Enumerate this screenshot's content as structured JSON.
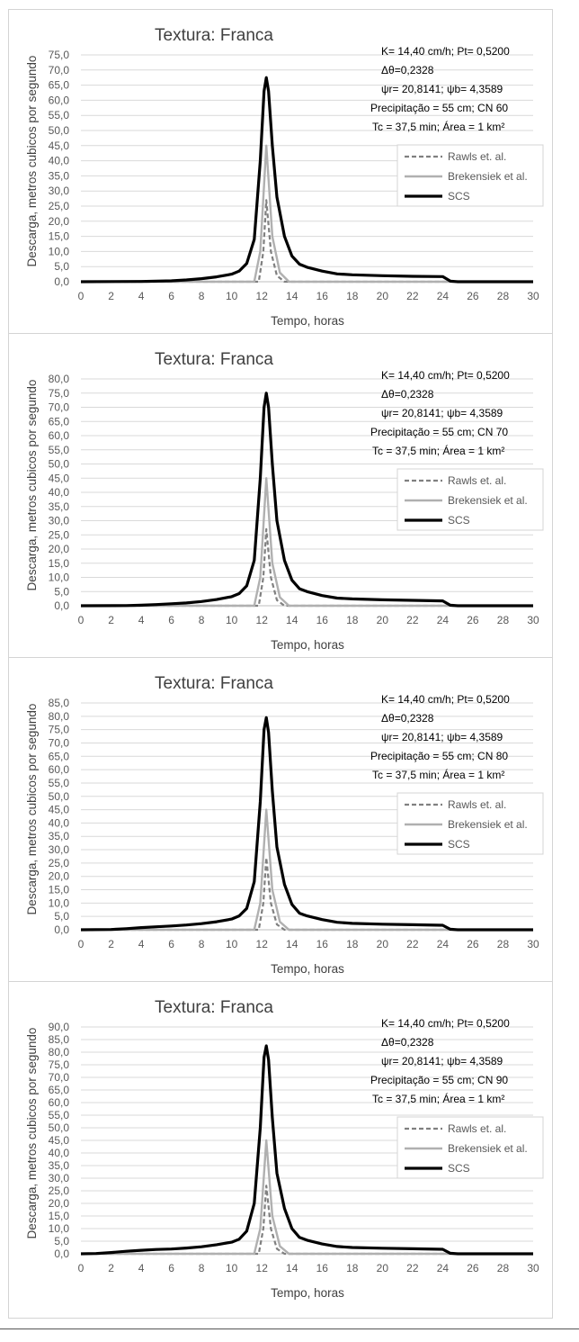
{
  "chart_data": [
    {
      "type": "line",
      "title": "Textura: Franca",
      "xlabel": "Tempo, horas",
      "ylabel": "Descarga, metros cubicos por segundo",
      "xlim": [
        0,
        30
      ],
      "ylim": [
        0,
        75
      ],
      "x_ticks": [
        "0",
        "2",
        "4",
        "6",
        "8",
        "10",
        "12",
        "14",
        "16",
        "18",
        "20",
        "22",
        "24",
        "26",
        "28",
        "30"
      ],
      "y_ticks": [
        "0,0",
        "5,0",
        "10,0",
        "15,0",
        "20,0",
        "25,0",
        "30,0",
        "35,0",
        "40,0",
        "45,0",
        "50,0",
        "55,0",
        "60,0",
        "65,0",
        "70,0",
        "75,0"
      ],
      "y_step": 5,
      "annotations": [
        "K= 14,40 cm/h; Pt= 0,5200",
        "Δθ=0,2328",
        "ψr= 20,8141;  ψb= 4,3589",
        "Precipitação = 55 cm; CN 60",
        "Tc = 37,5 min; Área = 1 km²"
      ],
      "legend": [
        "Rawls et. al.",
        "Brekensiek et al.",
        "SCS"
      ],
      "series": [
        {
          "name": "Rawls et. al.",
          "x": [
            0,
            11.8,
            12.1,
            12.3,
            12.6,
            13.0,
            13.5,
            30
          ],
          "values": [
            0,
            0,
            10,
            27,
            10,
            2,
            0,
            0
          ]
        },
        {
          "name": "Brekensiek et al.",
          "x": [
            0,
            11.5,
            11.9,
            12.3,
            12.7,
            13.2,
            13.8,
            30
          ],
          "values": [
            0,
            0,
            10,
            45,
            15,
            3,
            0,
            0
          ]
        },
        {
          "name": "SCS",
          "x": [
            0,
            4,
            6,
            7,
            8,
            9,
            10,
            10.5,
            11,
            11.5,
            11.9,
            12.15,
            12.3,
            12.45,
            12.7,
            13,
            13.5,
            14,
            14.5,
            15,
            16,
            17,
            18,
            20,
            22,
            24,
            24.5,
            25,
            30
          ],
          "values": [
            0,
            0.1,
            0.3,
            0.6,
            1.0,
            1.6,
            2.5,
            3.5,
            6.0,
            14,
            40,
            63,
            67.5,
            63,
            45,
            28,
            15,
            8.5,
            5.8,
            4.8,
            3.5,
            2.6,
            2.3,
            2.0,
            1.8,
            1.7,
            0.2,
            0,
            0
          ]
        }
      ]
    },
    {
      "type": "line",
      "title": "Textura: Franca",
      "xlabel": "Tempo, horas",
      "ylabel": "Descarga, metros cubicos por segundo",
      "xlim": [
        0,
        30
      ],
      "ylim": [
        0,
        80
      ],
      "x_ticks": [
        "0",
        "2",
        "4",
        "6",
        "8",
        "10",
        "12",
        "14",
        "16",
        "18",
        "20",
        "22",
        "24",
        "26",
        "28",
        "30"
      ],
      "y_ticks": [
        "0,0",
        "5,0",
        "10,0",
        "15,0",
        "20,0",
        "25,0",
        "30,0",
        "35,0",
        "40,0",
        "45,0",
        "50,0",
        "55,0",
        "60,0",
        "65,0",
        "70,0",
        "75,0",
        "80,0"
      ],
      "y_step": 5,
      "annotations": [
        "K= 14,40 cm/h; Pt= 0,5200",
        "Δθ=0,2328",
        "ψr= 20,8141;  ψb= 4,3589",
        "Precipitação = 55 cm; CN 70",
        "Tc = 37,5 min; Área = 1 km²"
      ],
      "legend": [
        "Rawls et. al.",
        "Brekensiek et al.",
        "SCS"
      ],
      "series": [
        {
          "name": "Rawls et. al.",
          "x": [
            0,
            11.8,
            12.1,
            12.3,
            12.6,
            13.0,
            13.5,
            30
          ],
          "values": [
            0,
            0,
            10,
            27,
            10,
            2,
            0,
            0
          ]
        },
        {
          "name": "Brekensiek et al.",
          "x": [
            0,
            11.5,
            11.9,
            12.3,
            12.7,
            13.2,
            13.8,
            30
          ],
          "values": [
            0,
            0,
            10,
            45,
            15,
            3,
            0,
            0
          ]
        },
        {
          "name": "SCS",
          "x": [
            0,
            3,
            4,
            5,
            6,
            7,
            8,
            9,
            10,
            10.5,
            11,
            11.5,
            11.9,
            12.15,
            12.3,
            12.45,
            12.7,
            13,
            13.5,
            14,
            14.5,
            15,
            16,
            17,
            18,
            20,
            22,
            24,
            24.5,
            25,
            30
          ],
          "values": [
            0,
            0.05,
            0.2,
            0.4,
            0.7,
            1.0,
            1.5,
            2.2,
            3.2,
            4.3,
            7.0,
            16,
            45,
            70,
            75,
            70,
            50,
            30,
            16,
            9,
            6,
            5,
            3.6,
            2.7,
            2.4,
            2.1,
            1.9,
            1.7,
            0.2,
            0,
            0
          ]
        }
      ]
    },
    {
      "type": "line",
      "title": "Textura: Franca",
      "xlabel": "Tempo, horas",
      "ylabel": "Descarga, metros cubicos por segundo",
      "xlim": [
        0,
        30
      ],
      "ylim": [
        0,
        85
      ],
      "x_ticks": [
        "0",
        "2",
        "4",
        "6",
        "8",
        "10",
        "12",
        "14",
        "16",
        "18",
        "20",
        "22",
        "24",
        "26",
        "28",
        "30"
      ],
      "y_ticks": [
        "0,0",
        "5,0",
        "10,0",
        "15,0",
        "20,0",
        "25,0",
        "30,0",
        "35,0",
        "40,0",
        "45,0",
        "50,0",
        "55,0",
        "60,0",
        "65,0",
        "70,0",
        "75,0",
        "80,0",
        "85,0"
      ],
      "y_step": 5,
      "annotations": [
        "K= 14,40 cm/h; Pt= 0,5200",
        "Δθ=0,2328",
        "ψr= 20,8141;  ψb= 4,3589",
        "Precipitação = 55 cm; CN 80",
        "Tc = 37,5 min; Área = 1 km²"
      ],
      "legend": [
        "Rawls et. al.",
        "Brekensiek et al.",
        "SCS"
      ],
      "series": [
        {
          "name": "Rawls et. al.",
          "x": [
            0,
            11.8,
            12.1,
            12.3,
            12.6,
            13.0,
            13.5,
            30
          ],
          "values": [
            0,
            0,
            10,
            27,
            10,
            2,
            0,
            0
          ]
        },
        {
          "name": "Brekensiek et al.",
          "x": [
            0,
            11.5,
            11.9,
            12.3,
            12.7,
            13.2,
            13.8,
            30
          ],
          "values": [
            0,
            0,
            10,
            45,
            15,
            3,
            0,
            0
          ]
        },
        {
          "name": "SCS",
          "x": [
            0,
            2,
            3,
            4,
            5,
            6,
            7,
            8,
            9,
            10,
            10.5,
            11,
            11.5,
            11.9,
            12.15,
            12.3,
            12.45,
            12.7,
            13,
            13.5,
            14,
            14.5,
            15,
            16,
            17,
            18,
            20,
            22,
            24,
            24.5,
            25,
            30
          ],
          "values": [
            0,
            0.1,
            0.4,
            0.8,
            1.1,
            1.4,
            1.8,
            2.3,
            3.0,
            4.0,
            5.2,
            8.0,
            18,
            48,
            75,
            79.5,
            74,
            52,
            31,
            17,
            9.5,
            6.2,
            5.2,
            3.8,
            2.8,
            2.4,
            2.1,
            1.9,
            1.7,
            0.2,
            0,
            0
          ]
        }
      ]
    },
    {
      "type": "line",
      "title": "Textura: Franca",
      "xlabel": "Tempo, horas",
      "ylabel": "Descarga, metros cubicos por segundo",
      "xlim": [
        0,
        30
      ],
      "ylim": [
        0,
        90
      ],
      "x_ticks": [
        "0",
        "2",
        "4",
        "6",
        "8",
        "10",
        "12",
        "14",
        "16",
        "18",
        "20",
        "22",
        "24",
        "26",
        "28",
        "30"
      ],
      "y_ticks": [
        "0,0",
        "5,0",
        "10,0",
        "15,0",
        "20,0",
        "25,0",
        "30,0",
        "35,0",
        "40,0",
        "45,0",
        "50,0",
        "55,0",
        "60,0",
        "65,0",
        "70,0",
        "75,0",
        "80,0",
        "85,0",
        "90,0"
      ],
      "y_step": 5,
      "annotations": [
        "K= 14,40 cm/h; Pt= 0,5200",
        "Δθ=0,2328",
        "ψr= 20,8141;  ψb= 4,3589",
        "Precipitação = 55 cm; CN 90",
        "Tc = 37,5 min; Área = 1 km²"
      ],
      "legend": [
        "Rawls et. al.",
        "Brekensiek et al.",
        "SCS"
      ],
      "series": [
        {
          "name": "Rawls et. al.",
          "x": [
            0,
            11.8,
            12.1,
            12.3,
            12.6,
            13.0,
            13.5,
            30
          ],
          "values": [
            0,
            0,
            10,
            27,
            10,
            2,
            0,
            0
          ]
        },
        {
          "name": "Brekensiek et al.",
          "x": [
            0,
            11.5,
            11.9,
            12.3,
            12.7,
            13.2,
            13.8,
            30
          ],
          "values": [
            0,
            0,
            10,
            45,
            15,
            3,
            0,
            0
          ]
        },
        {
          "name": "SCS",
          "x": [
            0,
            1,
            2,
            3,
            4,
            5,
            6,
            7,
            8,
            9,
            10,
            10.5,
            11,
            11.5,
            11.9,
            12.15,
            12.3,
            12.45,
            12.7,
            13,
            13.5,
            14,
            14.5,
            15,
            16,
            17,
            18,
            20,
            22,
            24,
            24.5,
            25,
            30
          ],
          "values": [
            0,
            0.1,
            0.5,
            1.0,
            1.4,
            1.7,
            1.9,
            2.3,
            2.8,
            3.6,
            4.6,
            5.8,
            9,
            20,
            50,
            78,
            82.5,
            77,
            54,
            32,
            18,
            10,
            6.5,
            5.4,
            3.9,
            2.9,
            2.5,
            2.2,
            2.0,
            1.8,
            0.2,
            0,
            0
          ]
        }
      ]
    }
  ],
  "colors": {
    "rawls": "#808080",
    "brekensiek": "#b0b0b0",
    "scs": "#000000",
    "grid": "#d9d9d9",
    "axis": "#bfbfbf"
  }
}
